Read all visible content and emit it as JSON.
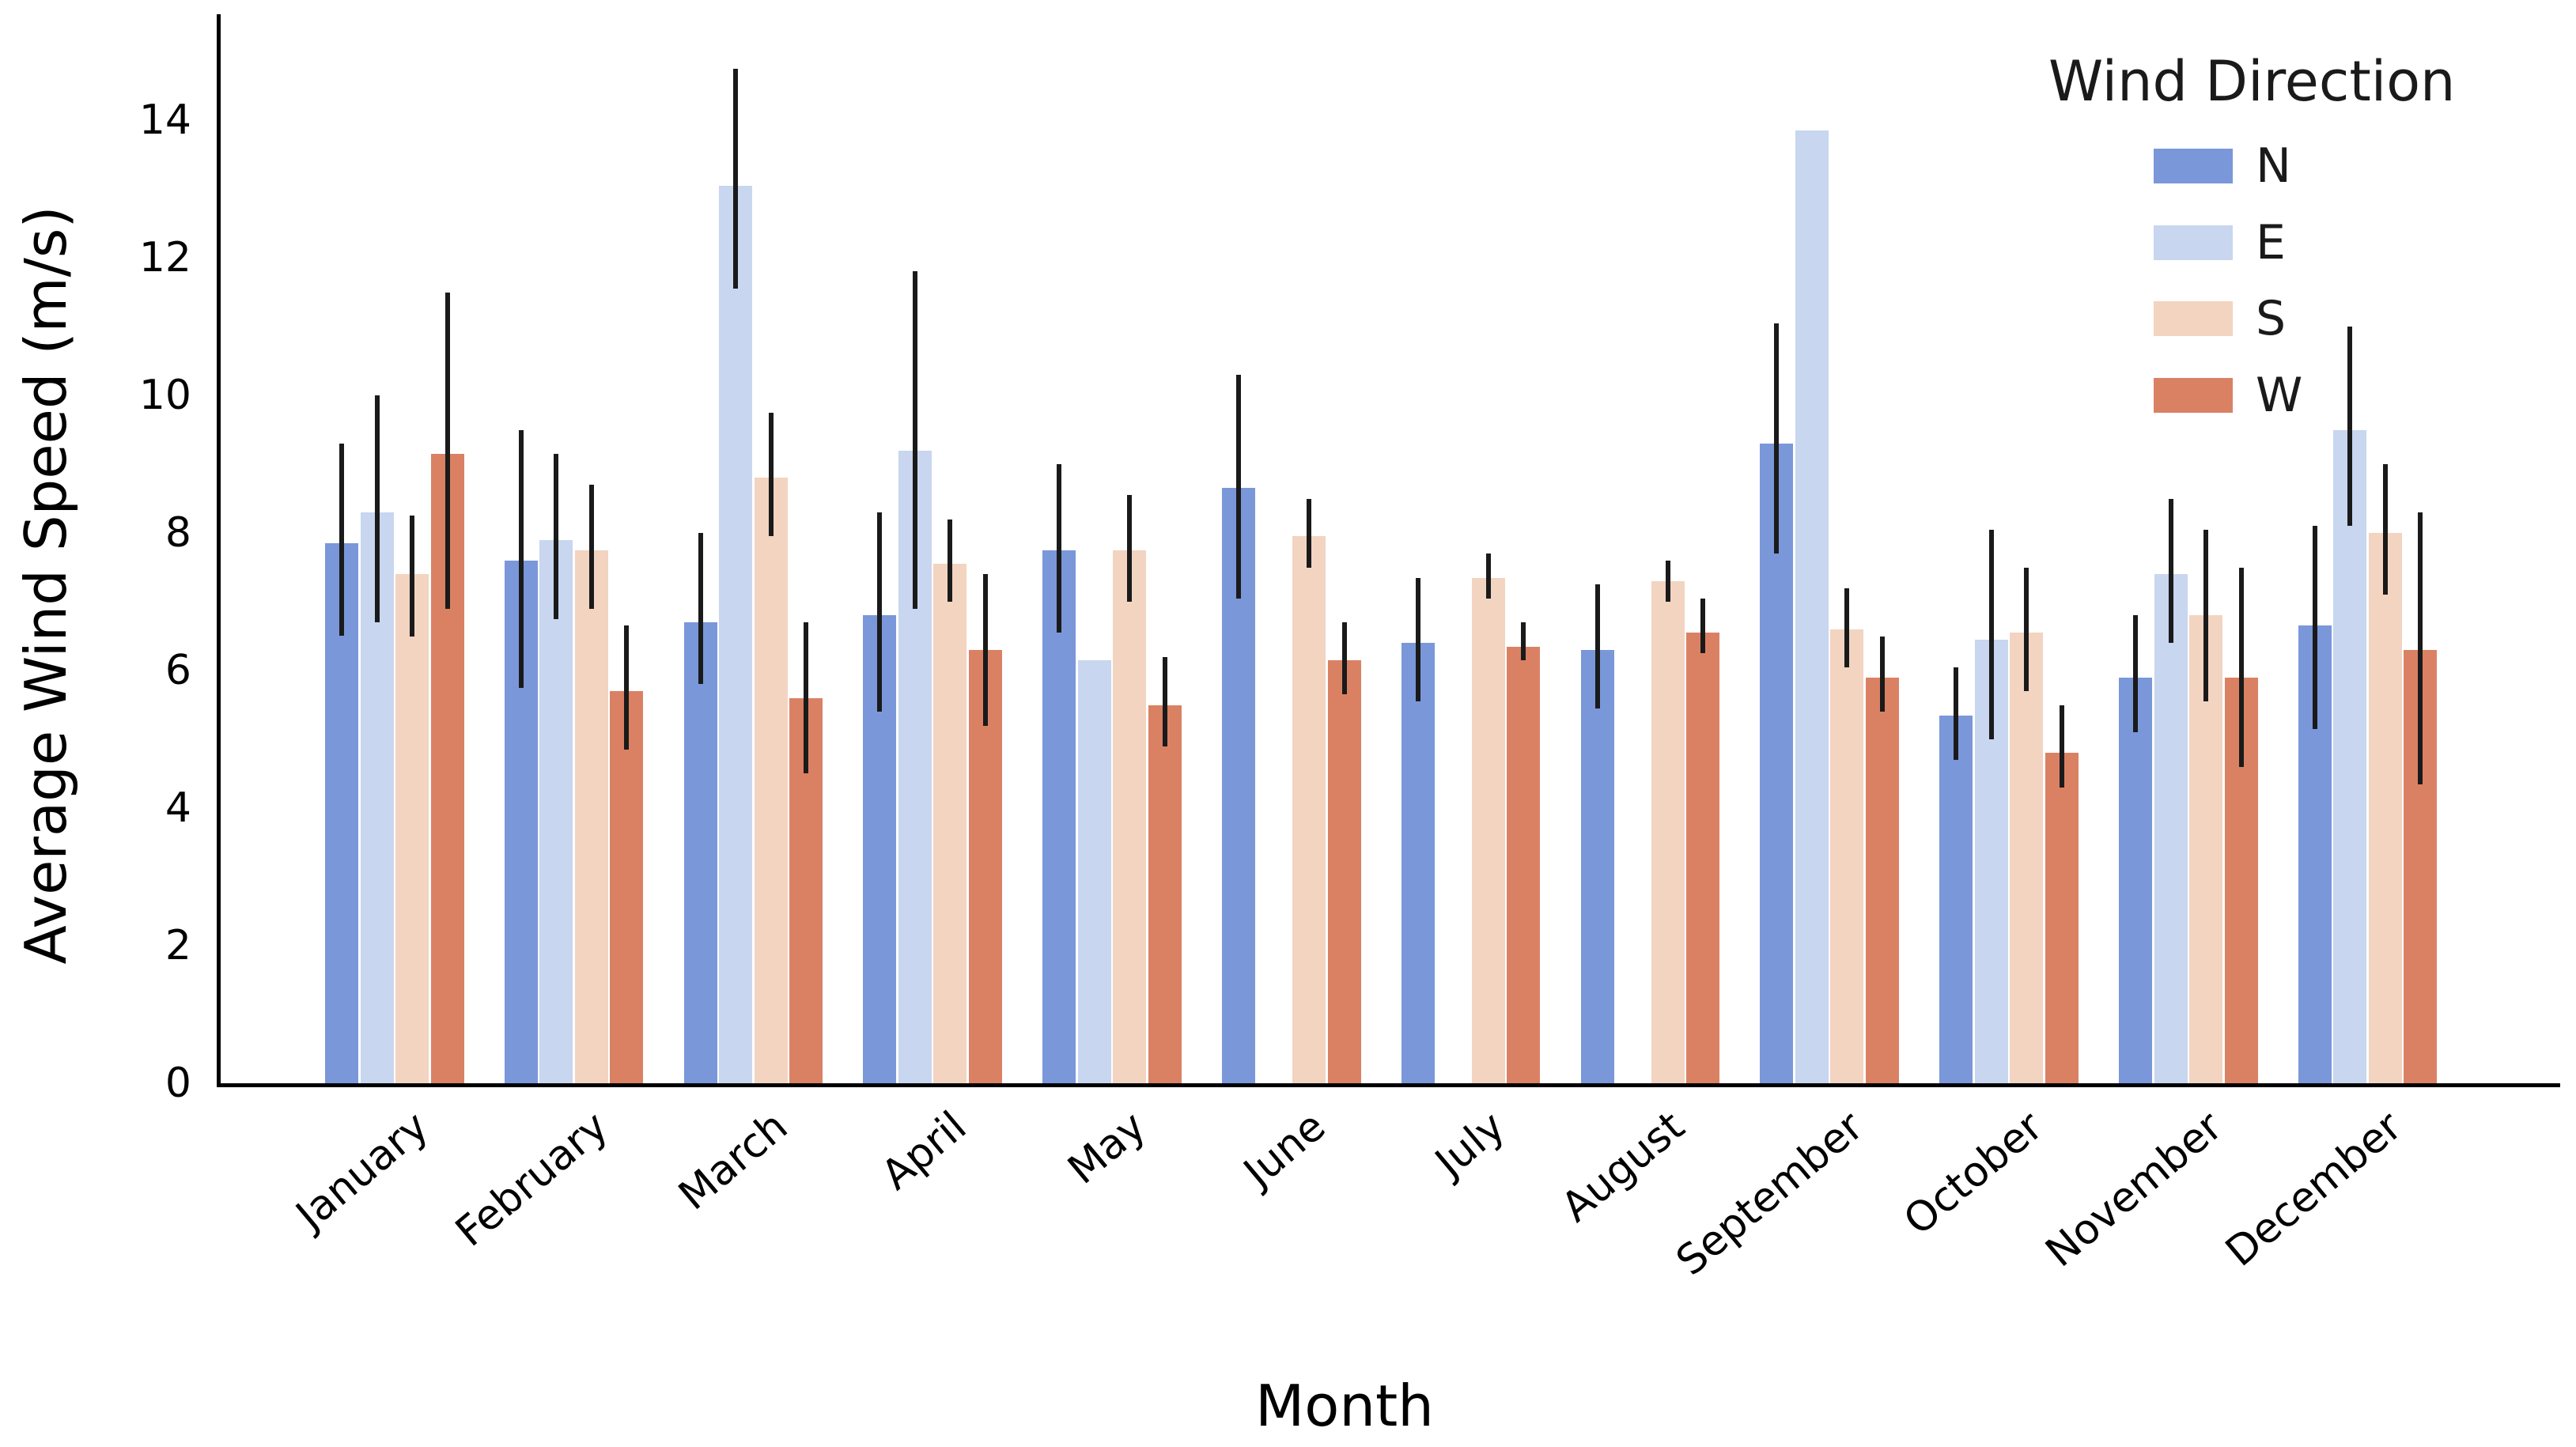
{
  "figure": {
    "ylabel": "Average Wind Speed (m/s)",
    "xlabel": "Month"
  },
  "legend": {
    "title": "Wind Direction",
    "entries": [
      {
        "label": "N",
        "color": "#7a97d9"
      },
      {
        "label": "E",
        "color": "#c8d6ef"
      },
      {
        "label": "S",
        "color": "#f2d4c1"
      },
      {
        "label": "W",
        "color": "#da8164"
      }
    ]
  },
  "axis": {
    "yticks": [
      0,
      2,
      4,
      6,
      8,
      10,
      12,
      14
    ]
  },
  "chart_data": {
    "type": "bar",
    "title": "",
    "xlabel": "Month",
    "ylabel": "Average Wind Speed (m/s)",
    "legend_title": "Wind Direction",
    "legend_position": "upper right",
    "grid": false,
    "ylim": [
      0,
      15.5
    ],
    "yticks": [
      0,
      2,
      4,
      6,
      8,
      10,
      12,
      14
    ],
    "error_bar_color": "#1a1a1a",
    "categories": [
      "January",
      "February",
      "March",
      "April",
      "May",
      "June",
      "July",
      "August",
      "September",
      "October",
      "November",
      "December"
    ],
    "series": [
      {
        "name": "N",
        "color": "#7a97d9",
        "values": [
          7.85,
          7.6,
          6.7,
          6.8,
          7.75,
          8.65,
          6.4,
          6.3,
          9.3,
          5.35,
          5.9,
          6.65
        ],
        "err_low": [
          6.5,
          5.75,
          5.8,
          5.4,
          6.55,
          7.05,
          5.55,
          5.45,
          7.7,
          4.7,
          5.1,
          5.15
        ],
        "err_high": [
          9.3,
          9.5,
          8.0,
          8.3,
          9.0,
          10.3,
          7.35,
          7.25,
          11.05,
          6.05,
          6.8,
          8.1
        ]
      },
      {
        "name": "E",
        "color": "#c8d6ef",
        "values": [
          8.3,
          7.9,
          13.05,
          9.2,
          6.15,
          null,
          null,
          null,
          13.85,
          6.45,
          7.4,
          9.5
        ],
        "err_low": [
          6.7,
          6.75,
          11.55,
          6.9,
          null,
          null,
          null,
          null,
          null,
          5.0,
          6.4,
          8.1
        ],
        "err_high": [
          10.0,
          9.15,
          14.75,
          11.8,
          null,
          null,
          null,
          null,
          null,
          8.05,
          8.5,
          11.0
        ]
      },
      {
        "name": "S",
        "color": "#f2d4c1",
        "values": [
          7.4,
          7.75,
          8.8,
          7.55,
          7.75,
          7.95,
          7.35,
          7.3,
          6.6,
          6.55,
          6.8,
          8.0
        ],
        "err_low": [
          6.5,
          6.9,
          7.95,
          7.0,
          7.0,
          7.5,
          7.05,
          7.0,
          6.05,
          5.7,
          5.55,
          7.1
        ],
        "err_high": [
          8.25,
          8.7,
          9.75,
          8.2,
          8.55,
          8.5,
          7.7,
          7.6,
          7.2,
          7.5,
          8.05,
          9.0
        ]
      },
      {
        "name": "W",
        "color": "#da8164",
        "values": [
          9.15,
          5.7,
          5.6,
          6.3,
          5.5,
          6.15,
          6.35,
          6.55,
          5.9,
          4.8,
          5.9,
          6.3
        ],
        "err_low": [
          6.9,
          4.85,
          4.5,
          5.2,
          4.9,
          5.65,
          6.15,
          6.25,
          5.4,
          4.3,
          4.6,
          4.35
        ],
        "err_high": [
          11.5,
          6.65,
          6.7,
          7.4,
          6.2,
          6.7,
          6.7,
          7.05,
          6.5,
          5.5,
          7.5,
          8.3
        ]
      }
    ]
  }
}
